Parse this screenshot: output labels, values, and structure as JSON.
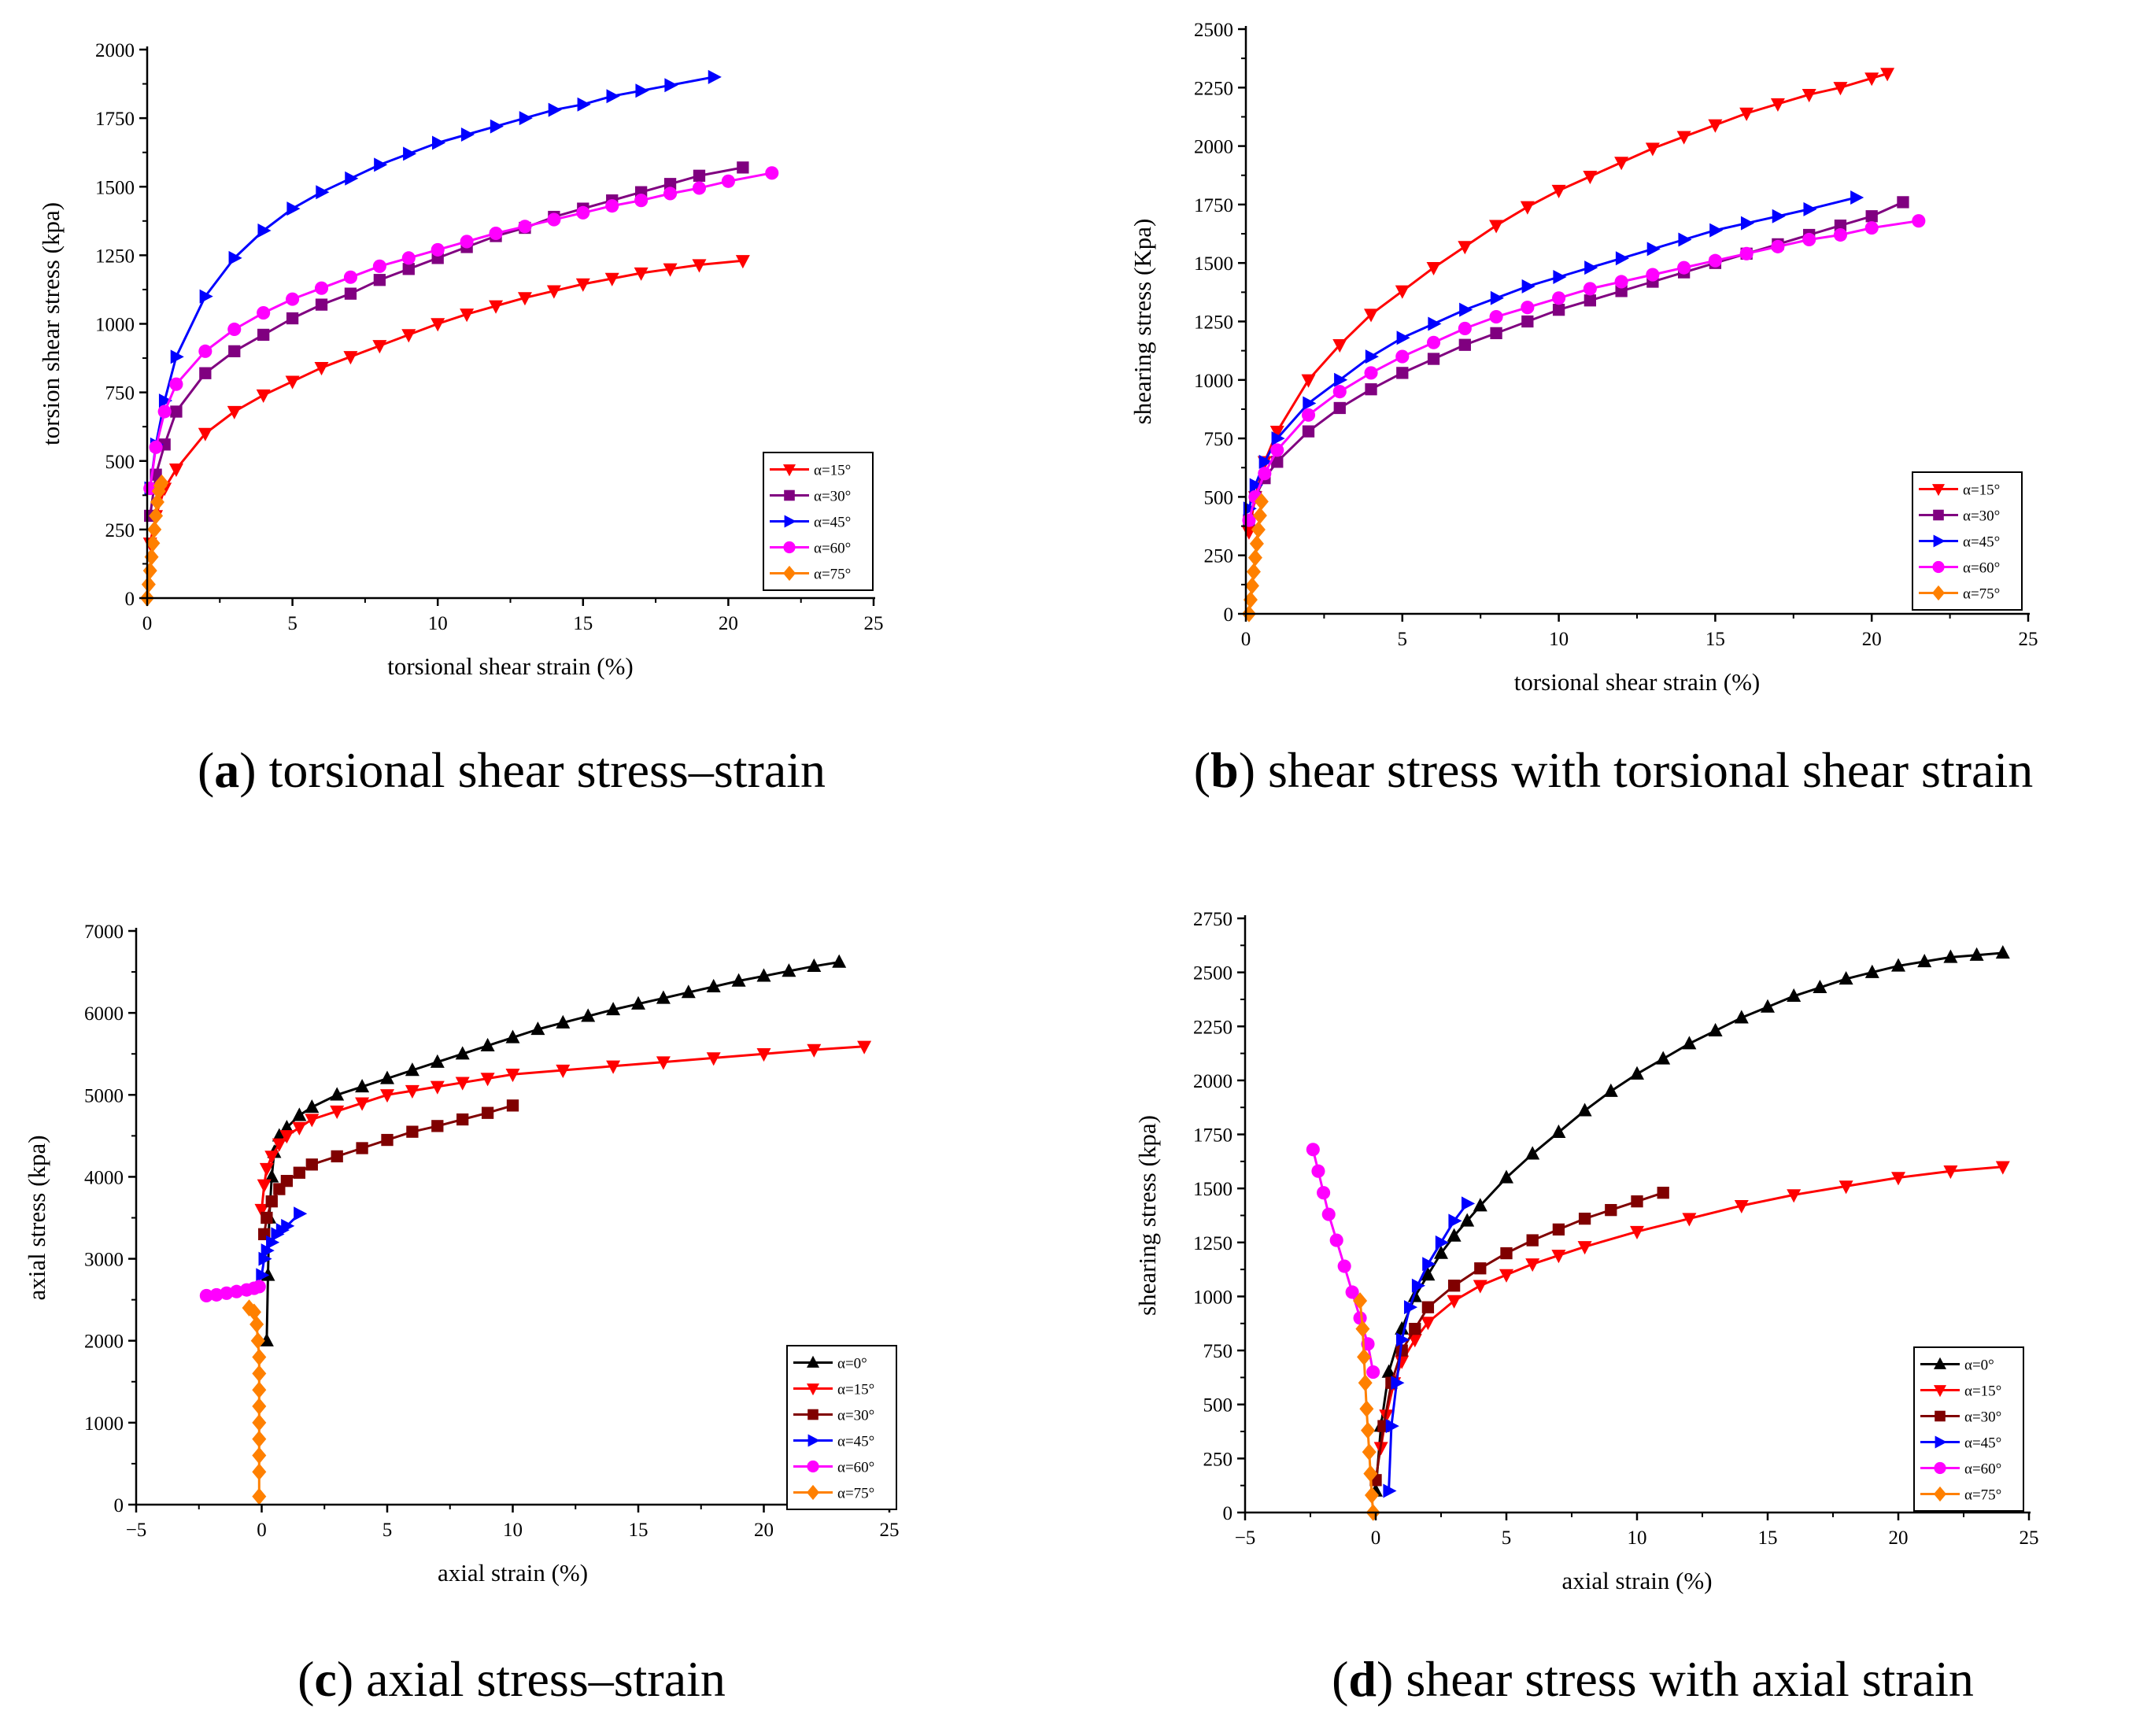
{
  "chart_data": [
    {
      "id": "a",
      "type": "line",
      "caption": {
        "open": "(",
        "letter": "a",
        "close": ")",
        "text": " torsional shear stress–strain"
      },
      "xlabel": "torsional shear strain (%)",
      "ylabel": "torsion shear stress (kpa)",
      "xlim": [
        0,
        25
      ],
      "ylim": [
        0,
        2000
      ],
      "xticks": [
        0,
        5,
        10,
        15,
        20,
        25
      ],
      "yticks": [
        0,
        250,
        500,
        750,
        1000,
        1250,
        1500,
        1750,
        2000
      ],
      "legend_position": "bottom-right",
      "series": [
        {
          "name": "α=15°",
          "color": "#ff0000",
          "marker": "triangle-down",
          "x": [
            0.1,
            0.3,
            0.6,
            1,
            2,
            3,
            4,
            5,
            6,
            7,
            8,
            9,
            10,
            11,
            12,
            13,
            14,
            15,
            16,
            17,
            18,
            19,
            20.5
          ],
          "y": [
            200,
            300,
            400,
            470,
            600,
            680,
            740,
            790,
            840,
            880,
            920,
            960,
            1000,
            1035,
            1065,
            1095,
            1120,
            1145,
            1165,
            1185,
            1200,
            1215,
            1230
          ]
        },
        {
          "name": "α=30°",
          "color": "#800080",
          "marker": "square",
          "x": [
            0.1,
            0.3,
            0.6,
            1,
            2,
            3,
            4,
            5,
            6,
            7,
            8,
            9,
            10,
            11,
            12,
            13,
            14,
            15,
            16,
            17,
            18,
            19,
            20.5
          ],
          "y": [
            300,
            450,
            560,
            680,
            820,
            900,
            960,
            1020,
            1070,
            1110,
            1160,
            1200,
            1240,
            1280,
            1320,
            1350,
            1390,
            1420,
            1450,
            1480,
            1510,
            1540,
            1570
          ]
        },
        {
          "name": "α=45°",
          "color": "#0000ff",
          "marker": "triangle-right",
          "x": [
            0.1,
            0.3,
            0.6,
            1,
            2,
            3,
            4,
            5,
            6,
            7,
            8,
            9,
            10,
            11,
            12,
            13,
            14,
            15,
            16,
            17,
            18,
            19.5
          ],
          "y": [
            400,
            560,
            720,
            880,
            1100,
            1240,
            1340,
            1420,
            1480,
            1530,
            1580,
            1620,
            1660,
            1690,
            1720,
            1750,
            1780,
            1800,
            1830,
            1850,
            1870,
            1900
          ]
        },
        {
          "name": "α=60°",
          "color": "#ff00ff",
          "marker": "circle",
          "x": [
            0.1,
            0.3,
            0.6,
            1,
            2,
            3,
            4,
            5,
            6,
            7,
            8,
            9,
            10,
            11,
            12,
            13,
            14,
            15,
            16,
            17,
            18,
            19,
            20,
            21.5
          ],
          "y": [
            400,
            550,
            680,
            780,
            900,
            980,
            1040,
            1090,
            1130,
            1170,
            1210,
            1240,
            1270,
            1300,
            1330,
            1355,
            1380,
            1405,
            1430,
            1450,
            1475,
            1495,
            1520,
            1550
          ]
        },
        {
          "name": "α=75°",
          "color": "#ff8000",
          "marker": "diamond",
          "x": [
            0,
            0.05,
            0.1,
            0.15,
            0.2,
            0.25,
            0.3,
            0.35,
            0.4,
            0.45,
            0.5
          ],
          "y": [
            0,
            50,
            100,
            150,
            200,
            250,
            300,
            350,
            390,
            410,
            420
          ]
        }
      ]
    },
    {
      "id": "b",
      "type": "line",
      "caption": {
        "open": "(",
        "letter": "b",
        "close": ")",
        "text": " shear stress with torsional shear strain"
      },
      "xlabel": "torsional shear strain (%)",
      "ylabel": "shearing stress (Kpa)",
      "xlim": [
        0,
        25
      ],
      "ylim": [
        0,
        2500
      ],
      "xticks": [
        0,
        5,
        10,
        15,
        20,
        25
      ],
      "yticks": [
        0,
        250,
        500,
        750,
        1000,
        1250,
        1500,
        1750,
        2000,
        2250,
        2500
      ],
      "legend_position": "bottom-right",
      "series": [
        {
          "name": "α=15°",
          "color": "#ff0000",
          "marker": "triangle-down",
          "x": [
            0.1,
            0.3,
            0.6,
            1,
            2,
            3,
            4,
            5,
            6,
            7,
            8,
            9,
            10,
            11,
            12,
            13,
            14,
            15,
            16,
            17,
            18,
            19,
            20,
            20.5
          ],
          "y": [
            350,
            500,
            650,
            780,
            1000,
            1150,
            1280,
            1380,
            1480,
            1570,
            1660,
            1740,
            1810,
            1870,
            1930,
            1990,
            2040,
            2090,
            2140,
            2180,
            2220,
            2250,
            2290,
            2310
          ]
        },
        {
          "name": "α=30°",
          "color": "#800080",
          "marker": "square",
          "x": [
            0.1,
            0.3,
            0.6,
            1,
            2,
            3,
            4,
            5,
            6,
            7,
            8,
            9,
            10,
            11,
            12,
            13,
            14,
            15,
            16,
            17,
            18,
            19,
            20,
            21
          ],
          "y": [
            400,
            500,
            580,
            650,
            780,
            880,
            960,
            1030,
            1090,
            1150,
            1200,
            1250,
            1300,
            1340,
            1380,
            1420,
            1460,
            1500,
            1540,
            1580,
            1620,
            1660,
            1700,
            1760
          ]
        },
        {
          "name": "α=45°",
          "color": "#0000ff",
          "marker": "triangle-right",
          "x": [
            0.1,
            0.3,
            0.6,
            1,
            2,
            3,
            4,
            5,
            6,
            7,
            8,
            9,
            10,
            11,
            12,
            13,
            14,
            15,
            16,
            17,
            18,
            19.5
          ],
          "y": [
            450,
            550,
            650,
            750,
            900,
            1000,
            1100,
            1180,
            1240,
            1300,
            1350,
            1400,
            1440,
            1480,
            1520,
            1560,
            1600,
            1640,
            1670,
            1700,
            1730,
            1780
          ]
        },
        {
          "name": "α=60°",
          "color": "#ff00ff",
          "marker": "circle",
          "x": [
            0.1,
            0.3,
            0.6,
            1,
            2,
            3,
            4,
            5,
            6,
            7,
            8,
            9,
            10,
            11,
            12,
            13,
            14,
            15,
            16,
            17,
            18,
            19,
            20,
            21.5
          ],
          "y": [
            400,
            500,
            600,
            700,
            850,
            950,
            1030,
            1100,
            1160,
            1220,
            1270,
            1310,
            1350,
            1390,
            1420,
            1450,
            1480,
            1510,
            1540,
            1570,
            1600,
            1620,
            1650,
            1680
          ]
        },
        {
          "name": "α=75°",
          "color": "#ff8000",
          "marker": "diamond",
          "x": [
            0.1,
            0.15,
            0.2,
            0.25,
            0.3,
            0.35,
            0.4,
            0.45,
            0.5
          ],
          "y": [
            0,
            60,
            120,
            180,
            240,
            300,
            360,
            420,
            480
          ]
        }
      ]
    },
    {
      "id": "c",
      "type": "line",
      "caption": {
        "open": "(",
        "letter": "c",
        "close": ")",
        "text": " axial stress–strain"
      },
      "xlabel": "axial strain (%)",
      "ylabel": "axial stress (kpa)",
      "xlim": [
        -5,
        25
      ],
      "ylim": [
        0,
        7000
      ],
      "xticks": [
        -5,
        0,
        5,
        10,
        15,
        20,
        25
      ],
      "yticks": [
        0,
        1000,
        2000,
        3000,
        4000,
        5000,
        6000,
        7000
      ],
      "legend_position": "bottom-right",
      "series": [
        {
          "name": "α=0°",
          "color": "#000000",
          "marker": "triangle-up",
          "x": [
            0.2,
            0.25,
            0.3,
            0.4,
            0.5,
            0.7,
            1,
            1.5,
            2,
            3,
            4,
            5,
            6,
            7,
            8,
            9,
            10,
            11,
            12,
            13,
            14,
            15,
            16,
            17,
            18,
            19,
            20,
            21,
            22,
            23
          ],
          "y": [
            2000,
            2800,
            3500,
            4000,
            4300,
            4500,
            4600,
            4750,
            4850,
            5000,
            5100,
            5200,
            5300,
            5400,
            5500,
            5600,
            5700,
            5800,
            5880,
            5960,
            6040,
            6110,
            6180,
            6250,
            6320,
            6390,
            6450,
            6510,
            6570,
            6620
          ]
        },
        {
          "name": "α=15°",
          "color": "#ff0000",
          "marker": "triangle-down",
          "x": [
            0,
            0.1,
            0.2,
            0.4,
            0.7,
            1,
            1.5,
            2,
            3,
            4,
            5,
            6,
            7,
            8,
            9,
            10,
            12,
            14,
            16,
            18,
            20,
            22,
            24
          ],
          "y": [
            3600,
            3900,
            4100,
            4250,
            4400,
            4500,
            4600,
            4700,
            4800,
            4900,
            5000,
            5050,
            5100,
            5150,
            5200,
            5250,
            5300,
            5350,
            5400,
            5450,
            5500,
            5550,
            5590
          ]
        },
        {
          "name": "α=30°",
          "color": "#800000",
          "marker": "square",
          "x": [
            0.1,
            0.2,
            0.4,
            0.7,
            1,
            1.5,
            2,
            3,
            4,
            5,
            6,
            7,
            8,
            9,
            10
          ],
          "y": [
            3300,
            3500,
            3700,
            3850,
            3950,
            4050,
            4150,
            4250,
            4350,
            4450,
            4550,
            4620,
            4700,
            4780,
            4870
          ]
        },
        {
          "name": "α=45°",
          "color": "#0000ff",
          "marker": "triangle-right",
          "x": [
            0,
            0.1,
            0.2,
            0.4,
            0.6,
            0.8,
            1,
            1.5
          ],
          "y": [
            2800,
            3000,
            3100,
            3200,
            3300,
            3350,
            3400,
            3550
          ]
        },
        {
          "name": "α=60°",
          "color": "#ff00ff",
          "marker": "circle",
          "x": [
            -2.2,
            -1.8,
            -1.4,
            -1,
            -0.6,
            -0.3,
            -0.1
          ],
          "y": [
            2550,
            2560,
            2580,
            2600,
            2620,
            2640,
            2660
          ]
        },
        {
          "name": "α=75°",
          "color": "#ff8000",
          "marker": "diamond",
          "x": [
            -0.5,
            -0.3,
            -0.2,
            -0.15,
            -0.1,
            -0.1,
            -0.1,
            -0.1,
            -0.1,
            -0.1,
            -0.1,
            -0.1,
            -0.1
          ],
          "y": [
            2400,
            2350,
            2200,
            2000,
            1800,
            1600,
            1400,
            1200,
            1000,
            800,
            600,
            400,
            100
          ]
        }
      ]
    },
    {
      "id": "d",
      "type": "line",
      "caption": {
        "open": "(",
        "letter": "d",
        "close": ")",
        "text": " shear stress with axial strain"
      },
      "xlabel": "axial strain (%)",
      "ylabel": "shearing stress (kpa)",
      "xlim": [
        -5,
        25
      ],
      "ylim": [
        0,
        2750
      ],
      "xticks": [
        -5,
        0,
        5,
        10,
        15,
        20,
        25
      ],
      "yticks": [
        0,
        250,
        500,
        750,
        1000,
        1250,
        1500,
        1750,
        2000,
        2250,
        2500,
        2750
      ],
      "legend_position": "bottom-right",
      "series": [
        {
          "name": "α=0°",
          "color": "#000000",
          "marker": "triangle-up",
          "x": [
            0,
            0.2,
            0.5,
            1,
            1.5,
            2,
            2.5,
            3,
            3.5,
            4,
            5,
            6,
            7,
            8,
            9,
            10,
            11,
            12,
            13,
            14,
            15,
            16,
            17,
            18,
            19,
            20,
            21,
            22,
            23,
            24
          ],
          "y": [
            100,
            400,
            650,
            850,
            1000,
            1100,
            1200,
            1280,
            1350,
            1420,
            1550,
            1660,
            1760,
            1860,
            1950,
            2030,
            2100,
            2170,
            2230,
            2290,
            2340,
            2390,
            2430,
            2470,
            2500,
            2530,
            2550,
            2570,
            2580,
            2590
          ]
        },
        {
          "name": "α=15°",
          "color": "#ff0000",
          "marker": "triangle-down",
          "x": [
            0.2,
            0.4,
            0.7,
            1,
            1.5,
            2,
            3,
            4,
            5,
            6,
            7,
            8,
            10,
            12,
            14,
            16,
            18,
            20,
            22,
            24
          ],
          "y": [
            300,
            450,
            600,
            700,
            800,
            880,
            980,
            1050,
            1100,
            1150,
            1190,
            1230,
            1300,
            1360,
            1420,
            1470,
            1510,
            1550,
            1580,
            1600
          ]
        },
        {
          "name": "α=30°",
          "color": "#800000",
          "marker": "square",
          "x": [
            0,
            0.3,
            0.6,
            1,
            1.5,
            2,
            3,
            4,
            5,
            6,
            7,
            8,
            9,
            10,
            11
          ],
          "y": [
            150,
            400,
            600,
            750,
            850,
            950,
            1050,
            1130,
            1200,
            1260,
            1310,
            1360,
            1400,
            1440,
            1480
          ]
        },
        {
          "name": "α=45°",
          "color": "#0000ff",
          "marker": "triangle-right",
          "x": [
            0.5,
            0.6,
            0.8,
            1,
            1.3,
            1.6,
            2,
            2.5,
            3,
            3.5
          ],
          "y": [
            100,
            400,
            600,
            800,
            950,
            1050,
            1150,
            1250,
            1350,
            1430
          ]
        },
        {
          "name": "α=60°",
          "color": "#ff00ff",
          "marker": "circle",
          "x": [
            -2.4,
            -2.2,
            -2,
            -1.8,
            -1.5,
            -1.2,
            -0.9,
            -0.6,
            -0.3,
            -0.1
          ],
          "y": [
            1680,
            1580,
            1480,
            1380,
            1260,
            1140,
            1020,
            900,
            780,
            650
          ]
        },
        {
          "name": "α=75°",
          "color": "#ff8000",
          "marker": "diamond",
          "x": [
            -0.6,
            -0.5,
            -0.45,
            -0.4,
            -0.35,
            -0.3,
            -0.25,
            -0.2,
            -0.15,
            -0.1
          ],
          "y": [
            980,
            850,
            720,
            600,
            480,
            380,
            280,
            180,
            80,
            0
          ]
        }
      ]
    }
  ]
}
